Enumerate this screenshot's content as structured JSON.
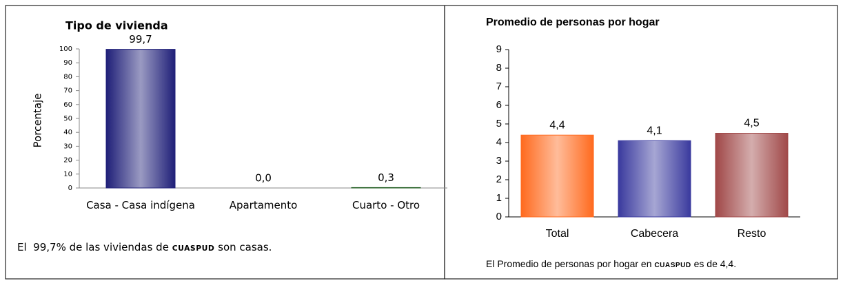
{
  "chart_data": [
    {
      "type": "bar",
      "title": "Tipo de vivienda",
      "ylabel": "Porcentaje",
      "categories": [
        "Casa - Casa indígena",
        "Apartamento",
        "Cuarto - Otro"
      ],
      "values": [
        99.7,
        0.0,
        0.3
      ],
      "value_labels": [
        "99,7",
        "0,0",
        "0,3"
      ],
      "colors": [
        "#1f1f78",
        "#1f1f78",
        "#1e5a1e"
      ],
      "ylim": [
        0,
        100
      ],
      "yticks": [
        0,
        10,
        20,
        30,
        40,
        50,
        60,
        70,
        80,
        90,
        100
      ],
      "caption": [
        "El  99,7% de las viviendas de",
        "CUASPUD",
        "son casas."
      ]
    },
    {
      "type": "bar",
      "title": "Promedio de personas por hogar",
      "categories": [
        "Total",
        "Cabecera",
        "Resto"
      ],
      "values": [
        4.4,
        4.1,
        4.5
      ],
      "value_labels": [
        "4,4",
        "4,1",
        "4,5"
      ],
      "colors": [
        "#ff6a1e",
        "#3a3a9e",
        "#a04848"
      ],
      "ylim": [
        0,
        9
      ],
      "yticks": [
        0,
        1,
        2,
        3,
        4,
        5,
        6,
        7,
        8,
        9
      ],
      "caption": [
        "El Promedio de personas por hogar en",
        "CUASPUD",
        "es de 4,4."
      ]
    }
  ]
}
